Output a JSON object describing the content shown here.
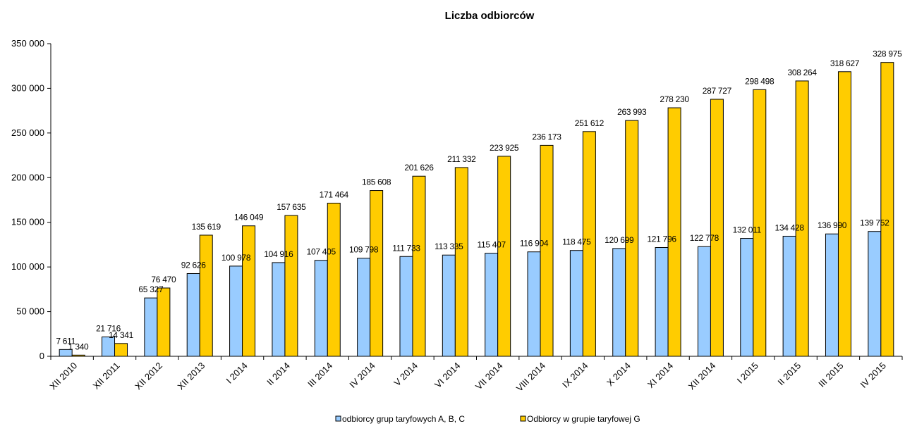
{
  "chart_data": {
    "type": "bar",
    "title": "Liczba odbiorców",
    "categories": [
      "XII 2010",
      "XII 2011",
      "XII 2012",
      "XII 2013",
      "I 2014",
      "II 2014",
      "III 2014",
      "IV 2014",
      "V 2014",
      "VI 2014",
      "VII 2014",
      "VIII 2014",
      "IX 2014",
      "X 2014",
      "XI 2014",
      "XII 2014",
      "I 2015",
      "II 2015",
      "III 2015",
      "IV 2015"
    ],
    "series": [
      {
        "name": "odbiorcy grup taryfowych A, B, C",
        "color": "#99ccff",
        "values": [
          7611,
          21716,
          65327,
          92626,
          100978,
          104916,
          107405,
          109798,
          111733,
          113335,
          115407,
          116904,
          118475,
          120699,
          121796,
          122778,
          132011,
          134428,
          136990,
          139752
        ],
        "labels": [
          "7 611",
          "21 716",
          "65 327",
          "92 626",
          "100 978",
          "104 916",
          "107 405",
          "109 798",
          "111 733",
          "113 335",
          "115 407",
          "116 904",
          "118 475",
          "120 699",
          "121 796",
          "122 778",
          "132 011",
          "134 428",
          "136 990",
          "139 752"
        ]
      },
      {
        "name": "Odbiorcy w grupie taryfowej G",
        "color": "#ffcc00",
        "values": [
          1340,
          14341,
          76470,
          135619,
          146049,
          157635,
          171464,
          185608,
          201626,
          211332,
          223925,
          236173,
          251612,
          263993,
          278230,
          287727,
          298498,
          308264,
          318627,
          328975
        ],
        "labels": [
          "1 340",
          "14 341",
          "76 470",
          "135 619",
          "146 049",
          "157 635",
          "171 464",
          "185 608",
          "201 626",
          "211 332",
          "223 925",
          "236 173",
          "251 612",
          "263 993",
          "278 230",
          "287 727",
          "298 498",
          "308 264",
          "318 627",
          "328 975"
        ]
      }
    ],
    "ylim": [
      0,
      350000
    ],
    "yticks": [
      0,
      50000,
      100000,
      150000,
      200000,
      250000,
      300000,
      350000
    ],
    "ytick_labels": [
      "0",
      "50 000",
      "100 000",
      "150 000",
      "200 000",
      "250 000",
      "300 000",
      "350 000"
    ],
    "xlabel": "",
    "ylabel": "",
    "grid": false,
    "legend_position": "bottom"
  }
}
